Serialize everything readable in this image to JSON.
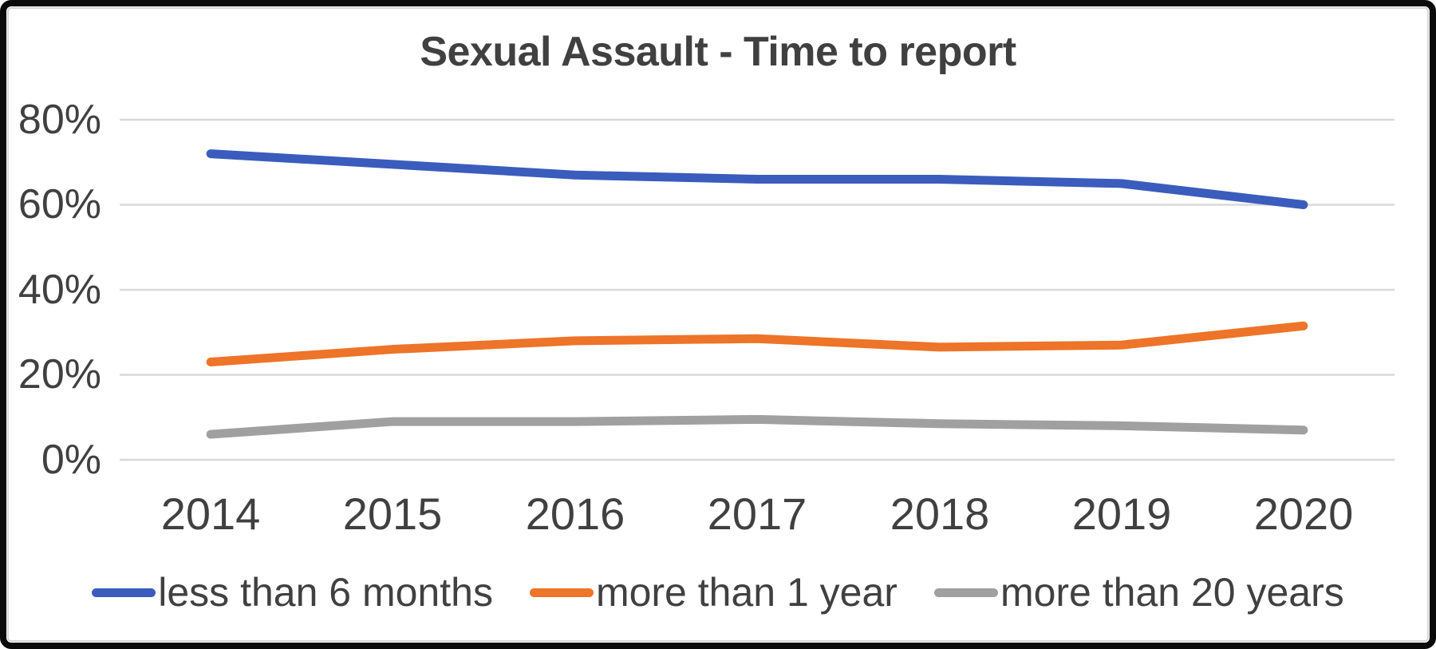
{
  "chart_data": {
    "type": "line",
    "title": "Sexual Assault - Time to report",
    "categories": [
      "2014",
      "2015",
      "2016",
      "2017",
      "2018",
      "2019",
      "2020"
    ],
    "series": [
      {
        "name": "less than 6 months",
        "color": "#3a5cbc",
        "values": [
          72,
          69.5,
          67,
          66,
          66,
          65,
          60
        ]
      },
      {
        "name": "more than 1 year",
        "color": "#ed7428",
        "values": [
          23,
          26,
          28,
          28.5,
          26.5,
          27,
          31.5
        ]
      },
      {
        "name": "more than 20 years",
        "color": "#a0a0a0",
        "values": [
          6,
          9,
          9,
          9.5,
          8.5,
          8,
          7
        ]
      }
    ],
    "y_ticks": [
      80,
      60,
      40,
      20,
      0
    ],
    "y_tick_labels": [
      "80%",
      "60%",
      "40%",
      "20%",
      "0%"
    ],
    "ylim": [
      0,
      80
    ],
    "y_unit": "%",
    "grid": "horizontal",
    "grid_color": "#d9d9d9",
    "text_color": "#404040",
    "legend_position": "bottom"
  }
}
